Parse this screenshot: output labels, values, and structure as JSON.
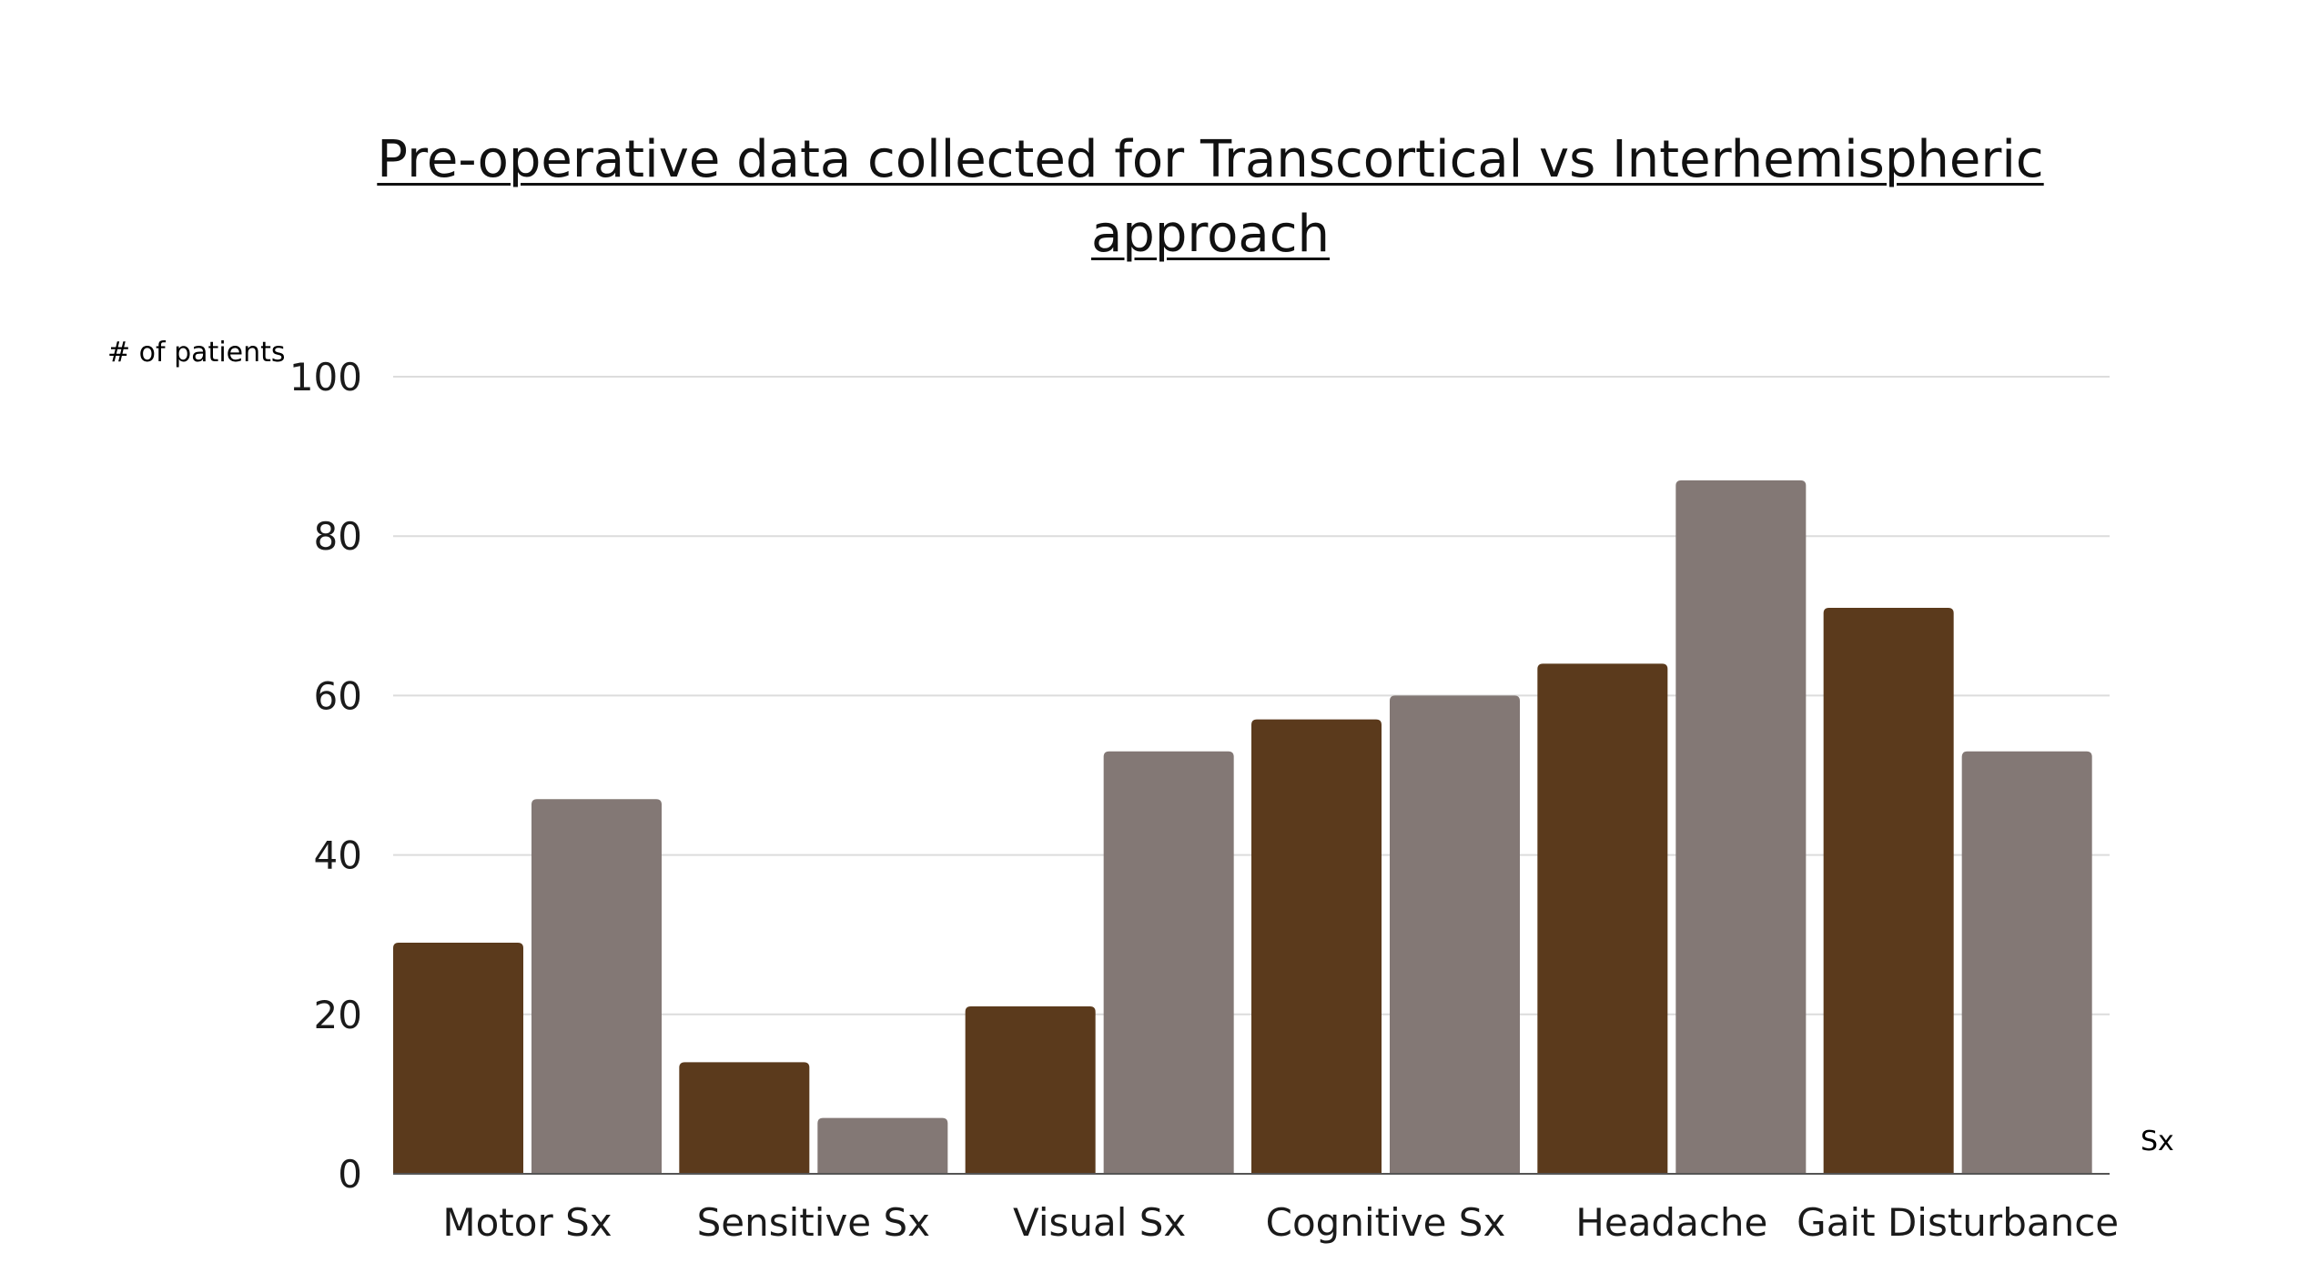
{
  "chart_data": {
    "type": "bar",
    "title": "Pre-operative data collected for Transcortical vs Interhemispheric approach",
    "ylabel": "# of patients",
    "xlabel": "Sx",
    "ylim": [
      0,
      100
    ],
    "yticks": [
      0,
      20,
      40,
      60,
      80,
      100
    ],
    "grid": true,
    "legend": "none",
    "categories": [
      "Motor Sx",
      "Sensitive Sx",
      "Visual Sx",
      "Cognitive Sx",
      "Headache",
      "Gait Disturbance"
    ],
    "series": [
      {
        "values": [
          29,
          14,
          21,
          57,
          64,
          71
        ],
        "color": "#5b3a1c"
      },
      {
        "values": [
          47,
          7,
          53,
          60,
          87,
          53
        ],
        "color": "#837875"
      }
    ]
  }
}
